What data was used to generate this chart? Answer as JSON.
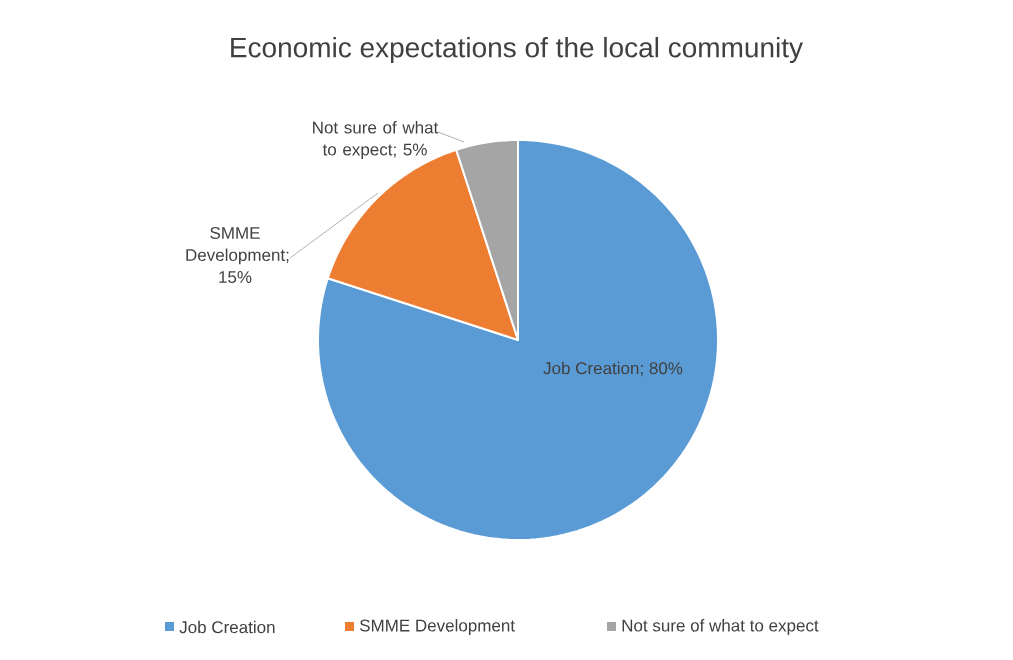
{
  "chart_data": {
    "type": "pie",
    "title": "Economic expectations of the local community",
    "categories": [
      "Job Creation",
      "SMME Development",
      "Not sure of what to expect"
    ],
    "values": [
      80,
      15,
      5
    ],
    "colors": [
      "#5b9bd5",
      "#ed7d31",
      "#a5a5a5"
    ],
    "value_labels": [
      "Job Creation; 80%",
      "SMME Development; 15%",
      "Not sure of what to expect; 5%"
    ],
    "legend": "bottom"
  }
}
